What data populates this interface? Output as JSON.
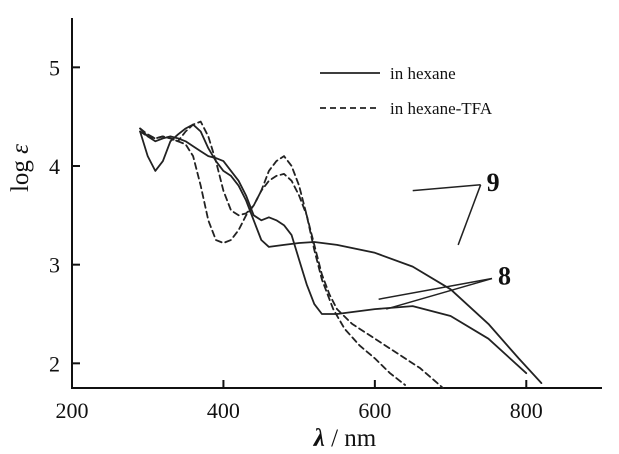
{
  "chart_data": {
    "type": "line",
    "xlabel_symbol": "λ",
    "xlabel_unit": " / nm",
    "ylabel_main": "log ",
    "ylabel_symbol": "ε",
    "xlim": [
      200,
      900
    ],
    "ylim": [
      1.75,
      5.5
    ],
    "xticks": [
      "200",
      "400",
      "600",
      "800"
    ],
    "xtick_values": [
      200,
      400,
      600,
      800
    ],
    "yticks": [
      "2",
      "3",
      "4",
      "5"
    ],
    "ytick_values": [
      2,
      3,
      4,
      5
    ],
    "legend": [
      {
        "label": "in hexane",
        "style": "solid"
      },
      {
        "label": "in hexane-TFA",
        "style": "dashed"
      }
    ],
    "annotations": [
      {
        "text": "9",
        "x": 745,
        "y": 3.85,
        "targets": [
          [
            650,
            3.75
          ],
          [
            710,
            3.2
          ]
        ]
      },
      {
        "text": "8",
        "x": 760,
        "y": 2.9,
        "targets": [
          [
            605,
            2.65
          ],
          [
            615,
            2.55
          ]
        ]
      }
    ],
    "series": [
      {
        "label": "9",
        "style": "solid",
        "points": [
          [
            290,
            4.35
          ],
          [
            300,
            4.1
          ],
          [
            310,
            3.95
          ],
          [
            320,
            4.05
          ],
          [
            330,
            4.25
          ],
          [
            340,
            4.32
          ],
          [
            350,
            4.38
          ],
          [
            360,
            4.42
          ],
          [
            370,
            4.35
          ],
          [
            380,
            4.18
          ],
          [
            390,
            4.05
          ],
          [
            400,
            3.95
          ],
          [
            410,
            3.9
          ],
          [
            420,
            3.8
          ],
          [
            430,
            3.65
          ],
          [
            440,
            3.45
          ],
          [
            450,
            3.25
          ],
          [
            460,
            3.18
          ],
          [
            480,
            3.2
          ],
          [
            500,
            3.22
          ],
          [
            520,
            3.23
          ],
          [
            550,
            3.2
          ],
          [
            600,
            3.12
          ],
          [
            650,
            2.98
          ],
          [
            700,
            2.75
          ],
          [
            750,
            2.4
          ],
          [
            790,
            2.05
          ],
          [
            820,
            1.8
          ],
          [
            835,
            1.7
          ]
        ]
      },
      {
        "label": "8",
        "style": "solid",
        "points": [
          [
            290,
            4.38
          ],
          [
            300,
            4.3
          ],
          [
            310,
            4.25
          ],
          [
            320,
            4.28
          ],
          [
            330,
            4.3
          ],
          [
            340,
            4.28
          ],
          [
            350,
            4.25
          ],
          [
            360,
            4.2
          ],
          [
            370,
            4.15
          ],
          [
            380,
            4.1
          ],
          [
            390,
            4.08
          ],
          [
            400,
            4.05
          ],
          [
            410,
            3.95
          ],
          [
            420,
            3.85
          ],
          [
            430,
            3.7
          ],
          [
            440,
            3.5
          ],
          [
            450,
            3.45
          ],
          [
            460,
            3.48
          ],
          [
            470,
            3.45
          ],
          [
            480,
            3.4
          ],
          [
            490,
            3.3
          ],
          [
            500,
            3.05
          ],
          [
            510,
            2.8
          ],
          [
            520,
            2.6
          ],
          [
            530,
            2.5
          ],
          [
            550,
            2.5
          ],
          [
            600,
            2.55
          ],
          [
            650,
            2.58
          ],
          [
            700,
            2.48
          ],
          [
            750,
            2.25
          ],
          [
            800,
            1.9
          ],
          [
            830,
            1.65
          ]
        ]
      },
      {
        "label": "9",
        "style": "dashed",
        "points": [
          [
            290,
            4.38
          ],
          [
            300,
            4.32
          ],
          [
            310,
            4.28
          ],
          [
            320,
            4.3
          ],
          [
            330,
            4.28
          ],
          [
            340,
            4.25
          ],
          [
            350,
            4.35
          ],
          [
            360,
            4.42
          ],
          [
            370,
            4.45
          ],
          [
            380,
            4.3
          ],
          [
            390,
            4.05
          ],
          [
            400,
            3.75
          ],
          [
            410,
            3.55
          ],
          [
            420,
            3.5
          ],
          [
            430,
            3.52
          ],
          [
            440,
            3.6
          ],
          [
            450,
            3.75
          ],
          [
            460,
            3.95
          ],
          [
            470,
            4.05
          ],
          [
            480,
            4.1
          ],
          [
            490,
            4.0
          ],
          [
            500,
            3.8
          ],
          [
            510,
            3.5
          ],
          [
            520,
            3.15
          ],
          [
            530,
            2.85
          ],
          [
            545,
            2.55
          ],
          [
            560,
            2.35
          ],
          [
            580,
            2.18
          ],
          [
            600,
            2.05
          ],
          [
            620,
            1.9
          ],
          [
            640,
            1.78
          ],
          [
            660,
            1.7
          ]
        ]
      },
      {
        "label": "8",
        "style": "dashed",
        "points": [
          [
            290,
            4.35
          ],
          [
            300,
            4.3
          ],
          [
            310,
            4.28
          ],
          [
            320,
            4.3
          ],
          [
            330,
            4.28
          ],
          [
            340,
            4.25
          ],
          [
            350,
            4.22
          ],
          [
            360,
            4.1
          ],
          [
            370,
            3.8
          ],
          [
            380,
            3.45
          ],
          [
            390,
            3.25
          ],
          [
            400,
            3.22
          ],
          [
            410,
            3.25
          ],
          [
            420,
            3.35
          ],
          [
            430,
            3.5
          ],
          [
            440,
            3.6
          ],
          [
            450,
            3.75
          ],
          [
            460,
            3.85
          ],
          [
            470,
            3.9
          ],
          [
            480,
            3.92
          ],
          [
            490,
            3.85
          ],
          [
            500,
            3.7
          ],
          [
            510,
            3.5
          ],
          [
            520,
            3.2
          ],
          [
            530,
            2.9
          ],
          [
            540,
            2.7
          ],
          [
            550,
            2.55
          ],
          [
            570,
            2.4
          ],
          [
            600,
            2.25
          ],
          [
            630,
            2.1
          ],
          [
            660,
            1.95
          ],
          [
            690,
            1.75
          ]
        ]
      }
    ]
  }
}
